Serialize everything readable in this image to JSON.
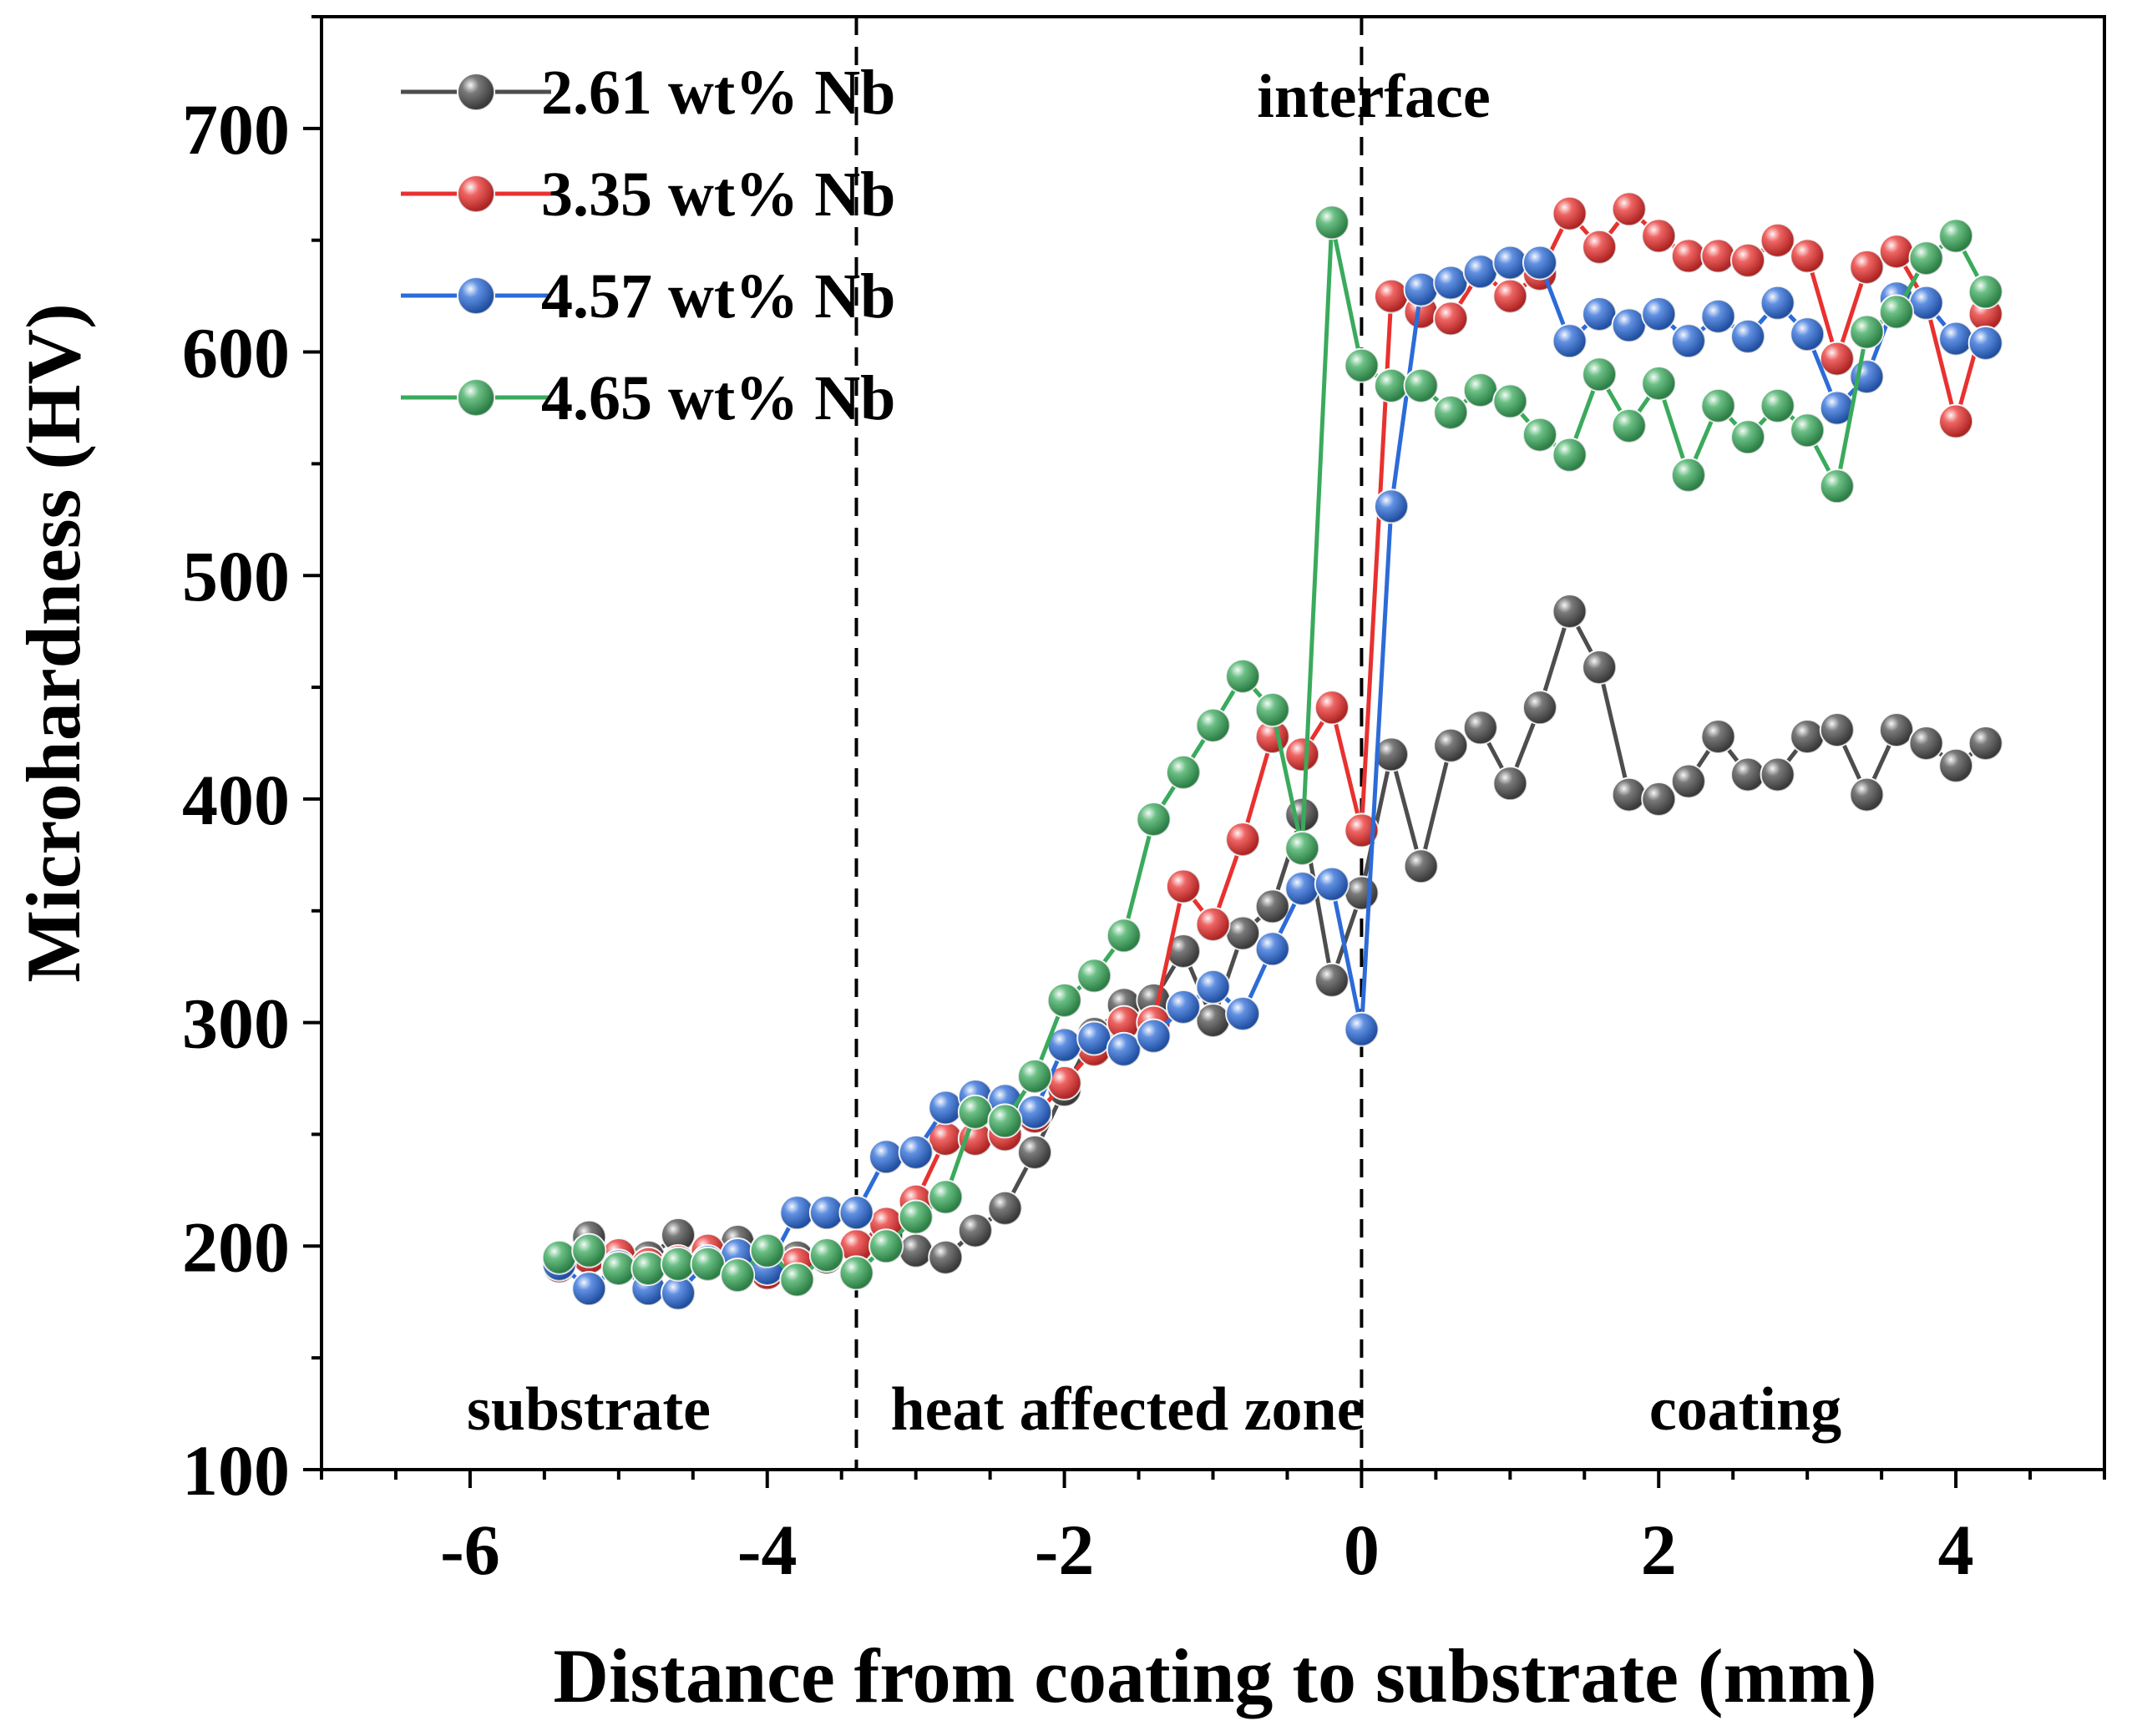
{
  "chart_data": {
    "type": "line",
    "title": "",
    "xlabel": "Distance from coating to substrate (mm)",
    "ylabel": "Microhardness (HV)",
    "xlim": [
      -7,
      5
    ],
    "ylim": [
      100,
      750
    ],
    "xticks": [
      -6,
      -4,
      -2,
      0,
      2,
      4
    ],
    "yticks": [
      100,
      200,
      300,
      400,
      500,
      600,
      700
    ],
    "xtick_labels": [
      "-6",
      "-4",
      "-2",
      "0",
      "2",
      "4"
    ],
    "ytick_labels": [
      "100",
      "200",
      "300",
      "400",
      "500",
      "600",
      "700"
    ],
    "legend_position": "top-left",
    "vlines": [
      -3.4,
      0
    ],
    "annotations": {
      "interface": "interface",
      "substrate": "substrate",
      "haz": "heat affected zone",
      "coating": "coating"
    },
    "series": [
      {
        "name": "2.61 wt% Nb",
        "color": "#4d4d4d",
        "x": [
          -5.4,
          -5.2,
          -5.0,
          -4.8,
          -4.6,
          -4.4,
          -4.2,
          -4.0,
          -3.8,
          -3.6,
          -3.4,
          -3.2,
          -3.0,
          -2.8,
          -2.6,
          -2.4,
          -2.2,
          -2.0,
          -1.8,
          -1.6,
          -1.4,
          -1.2,
          -1.0,
          -0.8,
          -0.6,
          -0.4,
          -0.2,
          0.0,
          0.2,
          0.4,
          0.6,
          0.8,
          1.0,
          1.2,
          1.4,
          1.6,
          1.8,
          2.0,
          2.2,
          2.4,
          2.6,
          2.8,
          3.0,
          3.2,
          3.4,
          3.6,
          3.8,
          4.0,
          4.2
        ],
        "y": [
          195,
          204,
          195,
          195,
          205,
          195,
          202,
          190,
          195,
          195,
          200,
          205,
          198,
          195,
          207,
          217,
          242,
          270,
          295,
          308,
          310,
          332,
          301,
          340,
          352,
          393,
          319,
          358,
          420,
          370,
          424,
          432,
          407,
          441,
          484,
          459,
          402,
          400,
          408,
          428,
          411,
          411,
          428,
          431,
          402,
          431,
          425,
          415,
          425
        ]
      },
      {
        "name": "3.35 wt% Nb",
        "color": "#e8312f",
        "x": [
          -5.4,
          -5.2,
          -5.0,
          -4.8,
          -4.6,
          -4.4,
          -4.2,
          -4.0,
          -3.8,
          -3.6,
          -3.4,
          -3.2,
          -3.0,
          -2.8,
          -2.6,
          -2.4,
          -2.2,
          -2.0,
          -1.8,
          -1.6,
          -1.4,
          -1.2,
          -1.0,
          -0.8,
          -0.6,
          -0.4,
          -0.2,
          0.0,
          0.2,
          0.4,
          0.6,
          0.8,
          1.0,
          1.2,
          1.4,
          1.6,
          1.8,
          2.0,
          2.2,
          2.4,
          2.6,
          2.8,
          3.0,
          3.2,
          3.4,
          3.6,
          3.8,
          4.0,
          4.2
        ],
        "y": [
          191,
          195,
          196,
          192,
          193,
          198,
          193,
          188,
          192,
          196,
          200,
          210,
          220,
          248,
          248,
          250,
          258,
          273,
          288,
          300,
          300,
          361,
          344,
          382,
          428,
          420,
          441,
          386,
          625,
          618,
          615,
          636,
          625,
          635,
          662,
          647,
          664,
          652,
          643,
          643,
          641,
          650,
          643,
          597,
          638,
          645,
          622,
          569,
          617
        ]
      },
      {
        "name": "4.57 wt% Nb",
        "color": "#2c6bd8",
        "x": [
          -5.4,
          -5.2,
          -5.0,
          -4.8,
          -4.6,
          -4.4,
          -4.2,
          -4.0,
          -3.8,
          -3.6,
          -3.4,
          -3.2,
          -3.0,
          -2.8,
          -2.6,
          -2.4,
          -2.2,
          -2.0,
          -1.8,
          -1.6,
          -1.4,
          -1.2,
          -1.0,
          -0.8,
          -0.6,
          -0.4,
          -0.2,
          0.0,
          0.2,
          0.4,
          0.6,
          0.8,
          1.0,
          1.2,
          1.4,
          1.6,
          1.8,
          2.0,
          2.2,
          2.4,
          2.6,
          2.8,
          3.0,
          3.2,
          3.4,
          3.6,
          3.8,
          4.0,
          4.2
        ],
        "y": [
          192,
          181,
          191,
          181,
          179,
          193,
          196,
          190,
          215,
          215,
          215,
          240,
          242,
          262,
          267,
          265,
          260,
          290,
          293,
          288,
          294,
          307,
          316,
          304,
          333,
          360,
          362,
          297,
          531,
          628,
          631,
          636,
          640,
          640,
          605,
          617,
          612,
          617,
          605,
          616,
          607,
          622,
          608,
          575,
          589,
          624,
          622,
          606,
          604
        ]
      },
      {
        "name": "4.65 wt% Nb",
        "color": "#3aaa5c",
        "x": [
          -5.4,
          -5.2,
          -5.0,
          -4.8,
          -4.6,
          -4.4,
          -4.2,
          -4.0,
          -3.8,
          -3.6,
          -3.4,
          -3.2,
          -3.0,
          -2.8,
          -2.6,
          -2.4,
          -2.2,
          -2.0,
          -1.8,
          -1.6,
          -1.4,
          -1.2,
          -1.0,
          -0.8,
          -0.6,
          -0.4,
          -0.2,
          0.0,
          0.2,
          0.4,
          0.6,
          0.8,
          1.0,
          1.2,
          1.4,
          1.6,
          1.8,
          2.0,
          2.2,
          2.4,
          2.6,
          2.8,
          3.0,
          3.2,
          3.4,
          3.6,
          3.8,
          4.0,
          4.2
        ],
        "y": [
          195,
          198,
          190,
          190,
          192,
          192,
          187,
          198,
          185,
          196,
          188,
          200,
          213,
          222,
          260,
          256,
          276,
          310,
          321,
          339,
          391,
          412,
          433,
          455,
          440,
          378,
          658,
          594,
          585,
          585,
          573,
          583,
          578,
          563,
          554,
          590,
          567,
          586,
          545,
          576,
          562,
          576,
          565,
          540,
          609,
          618,
          642,
          652,
          627
        ]
      }
    ]
  }
}
